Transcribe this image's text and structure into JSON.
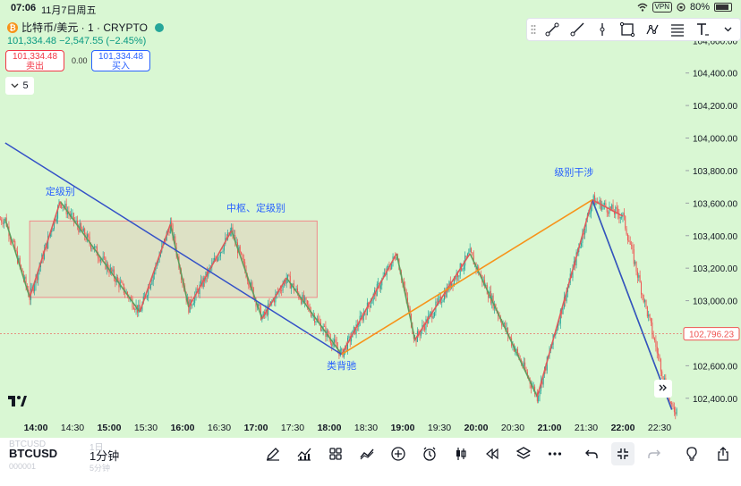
{
  "status_bar": {
    "time": "07:06",
    "date": "11月7日周五",
    "vpn": "VPN",
    "battery": "80%"
  },
  "header": {
    "coin_letter": "₿",
    "title": "比特币/美元 · 1 · CRYPTO",
    "quote": "101,334.48 −2,547.55 (−2.45%)",
    "sell_price": "101,334.48",
    "sell_label": "卖出",
    "spread": "0.00",
    "buy_price": "101,334.48",
    "buy_label": "买入",
    "indicator_count": "5"
  },
  "colors": {
    "background": "#d9f7d3",
    "candle_up": "#26a69a",
    "candle_down": "#ef5350",
    "stroke_up": "#e05a5a",
    "stroke_down": "#5f9e5f",
    "trendline": "#3451c7",
    "connector": "#f7931a",
    "annotation_text": "#2962ff",
    "box_border": "#f08a8a",
    "current_price_label": "#ef5350"
  },
  "chart_data": {
    "type": "candlestick",
    "x_ticks": [
      "14:00",
      "14:30",
      "15:00",
      "15:30",
      "16:00",
      "16:30",
      "17:00",
      "17:30",
      "18:00",
      "18:30",
      "19:00",
      "19:30",
      "20:00",
      "20:30",
      "21:00",
      "21:30",
      "22:00",
      "22:30"
    ],
    "y_ticks": [
      "104,600.00",
      "104,400.00",
      "104,200.00",
      "104,000.00",
      "103,800.00",
      "103,600.00",
      "103,400.00",
      "103,200.00",
      "103,000.00",
      "102,800.00",
      "102,600.00",
      "102,400.00"
    ],
    "ylim": [
      102300,
      104750
    ],
    "current_price": "102,796.23",
    "annotations": [
      {
        "text": "定级别",
        "x": "14:20",
        "y": 103650
      },
      {
        "text": "中枢、定级别",
        "x": "17:00",
        "y": 103550
      },
      {
        "text": "类背驰",
        "x": "18:10",
        "y": 102580
      },
      {
        "text": "级别干涉",
        "x": "21:20",
        "y": 103770
      }
    ],
    "pivot_box": {
      "x_start": "13:55",
      "x_end": "17:50",
      "y_low": 103020,
      "y_high": 103490
    },
    "strokes_up": [
      {
        "from": [
          "13:55",
          103020
        ],
        "to": [
          "14:20",
          103610
        ]
      },
      {
        "from": [
          "15:25",
          102930
        ],
        "to": [
          "15:50",
          103470
        ]
      },
      {
        "from": [
          "16:05",
          102960
        ],
        "to": [
          "16:40",
          103430
        ]
      },
      {
        "from": [
          "17:05",
          102890
        ],
        "to": [
          "17:25",
          103140
        ]
      },
      {
        "from": [
          "18:10",
          102670
        ],
        "to": [
          "18:55",
          103290
        ]
      },
      {
        "from": [
          "19:10",
          102760
        ],
        "to": [
          "19:55",
          103290
        ]
      },
      {
        "from": [
          "20:50",
          102410
        ],
        "to": [
          "21:35",
          103620
        ]
      },
      {
        "from": [
          "21:35",
          103620
        ],
        "to": [
          "22:00",
          103520
        ]
      }
    ],
    "strokes_down": [
      {
        "from": [
          "13:35",
          103500
        ],
        "to": [
          "13:55",
          103020
        ]
      },
      {
        "from": [
          "14:20",
          103610
        ],
        "to": [
          "15:25",
          102930
        ]
      },
      {
        "from": [
          "15:50",
          103470
        ],
        "to": [
          "16:05",
          102960
        ]
      },
      {
        "from": [
          "16:40",
          103430
        ],
        "to": [
          "17:05",
          102890
        ]
      },
      {
        "from": [
          "17:25",
          103140
        ],
        "to": [
          "18:10",
          102670
        ]
      },
      {
        "from": [
          "18:55",
          103290
        ],
        "to": [
          "19:10",
          102760
        ]
      },
      {
        "from": [
          "19:55",
          103290
        ],
        "to": [
          "20:50",
          102410
        ]
      },
      {
        "from": [
          "21:35",
          103620
        ],
        "to": [
          "22:40",
          102330
        ]
      }
    ],
    "trendlines": [
      {
        "from": [
          "13:35",
          103970
        ],
        "to": [
          "18:10",
          102670
        ]
      },
      {
        "from": [
          "21:35",
          103620
        ],
        "to": [
          "22:40",
          102330
        ]
      }
    ],
    "connector": {
      "from": [
        "18:10",
        102670
      ],
      "to": [
        "21:35",
        103620
      ]
    }
  },
  "bottom_bar": {
    "symbol": "BTCUSD",
    "symbol_ghost": "BTCUSD",
    "symbol_ghost2": "000001",
    "timeframe": "1分钟",
    "timeframe_ghost": "1日",
    "timeframe_ghost2": "5分钟"
  }
}
